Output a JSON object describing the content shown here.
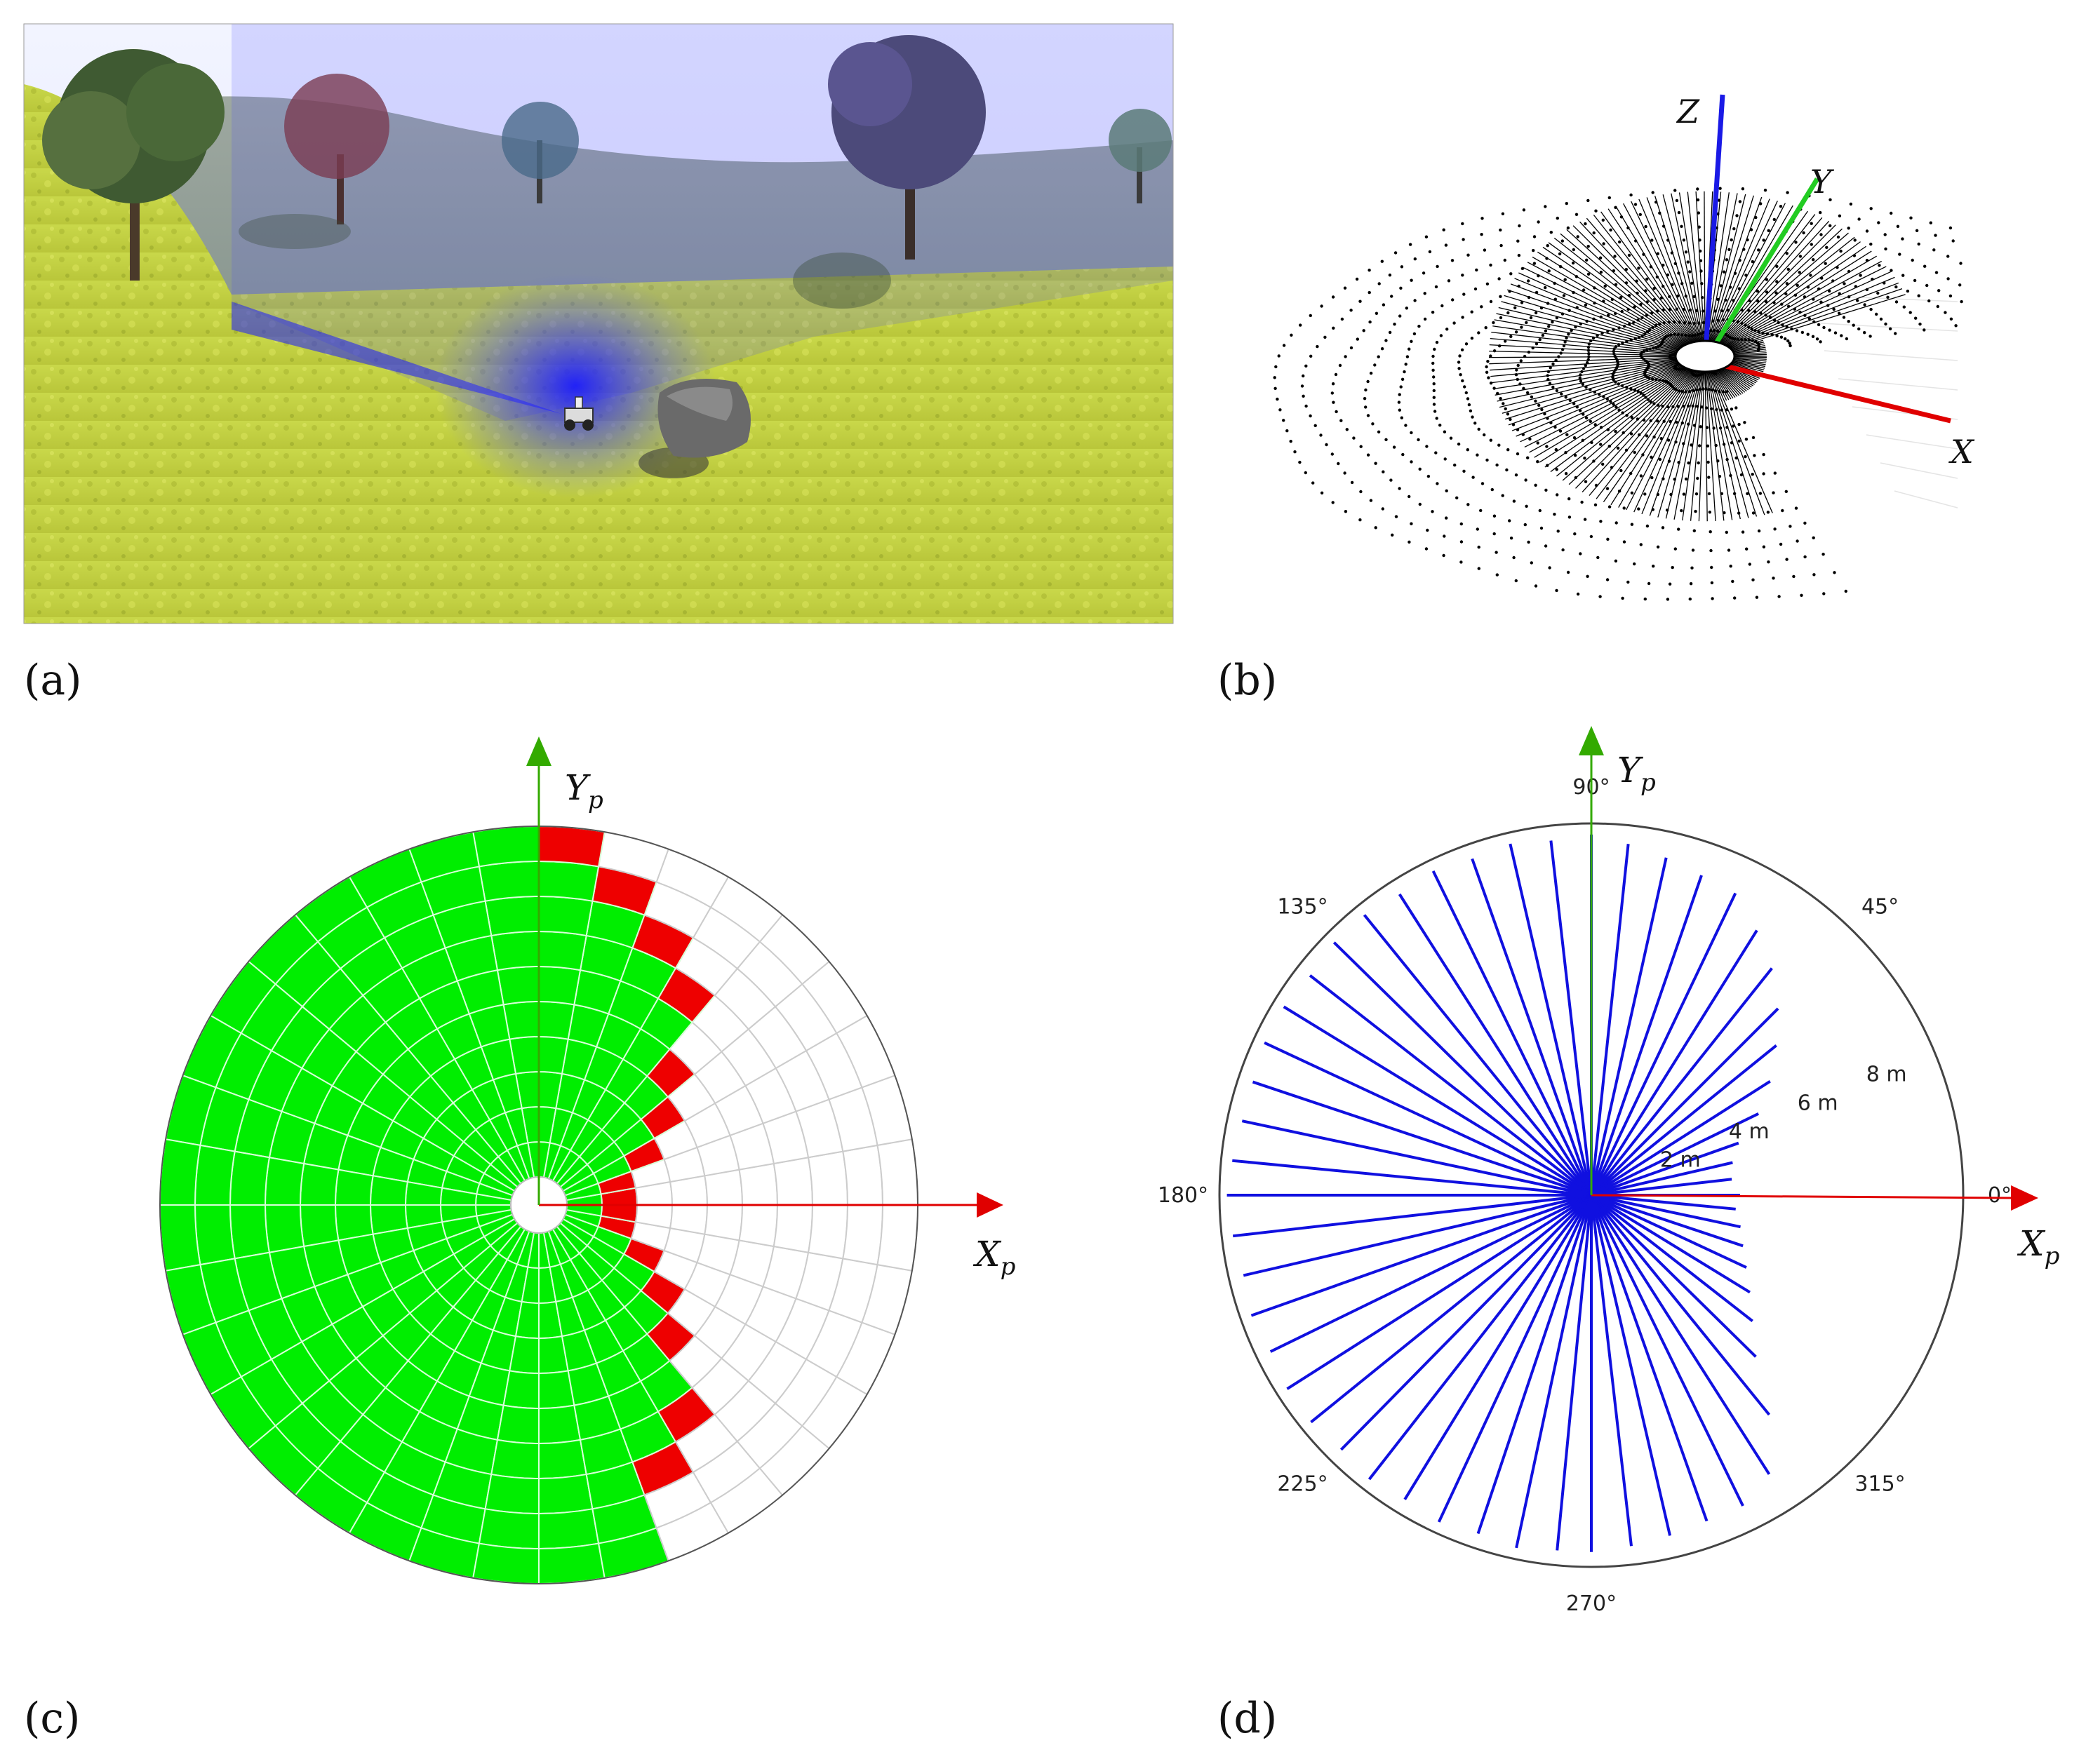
{
  "panels": {
    "a": {
      "label": "(a)"
    },
    "b": {
      "label": "(b)",
      "axes": {
        "x": "X",
        "y": "Y",
        "z": "Z"
      },
      "colors": {
        "x": "#e00000",
        "y": "#22cc22",
        "z": "#1a1ae6"
      }
    },
    "c": {
      "label": "(c)",
      "x_axis_label": "X",
      "x_axis_sub": "p",
      "y_axis_label": "Y",
      "y_axis_sub": "p",
      "colors": {
        "free": "#00ee00",
        "occupied": "#ee0000",
        "unknown": "#ffffff",
        "grid": "#dddddd"
      }
    },
    "d": {
      "label": "(d)",
      "x_axis_label": "X",
      "x_axis_sub": "p",
      "y_axis_label": "Y",
      "y_axis_sub": "p",
      "angle_labels": [
        "0°",
        "45°",
        "90°",
        "135°",
        "180°",
        "225°",
        "270°",
        "315°"
      ],
      "range_labels": [
        "2 m",
        "4 m",
        "6 m",
        "8 m"
      ],
      "colors": {
        "ray": "#1010e0",
        "circle": "#444444",
        "x_axis": "#e00000",
        "y_axis": "#33aa00"
      }
    }
  },
  "chart_data": {
    "type": "polar_rays",
    "description_units": "angle in degrees, range in meters",
    "rays": [
      {
        "angle": 0,
        "range": 4.0
      },
      {
        "angle": 6.5,
        "range": 3.8
      },
      {
        "angle": 13,
        "range": 3.9
      },
      {
        "angle": 19.5,
        "range": 4.2
      },
      {
        "angle": 26,
        "range": 5.0
      },
      {
        "angle": 32.5,
        "range": 5.7
      },
      {
        "angle": 39,
        "range": 6.4
      },
      {
        "angle": 45,
        "range": 7.1
      },
      {
        "angle": 51.5,
        "range": 7.8
      },
      {
        "angle": 58,
        "range": 8.4
      },
      {
        "angle": 64.5,
        "range": 9.0
      },
      {
        "angle": 71,
        "range": 9.1
      },
      {
        "angle": 77.5,
        "range": 9.3
      },
      {
        "angle": 84,
        "range": 9.5
      },
      {
        "angle": 90,
        "range": 9.7
      },
      {
        "angle": 96.5,
        "range": 9.6
      },
      {
        "angle": 103,
        "range": 9.7
      },
      {
        "angle": 109.5,
        "range": 9.6
      },
      {
        "angle": 116,
        "range": 9.7
      },
      {
        "angle": 122.5,
        "range": 9.6
      },
      {
        "angle": 129,
        "range": 9.7
      },
      {
        "angle": 135.5,
        "range": 9.7
      },
      {
        "angle": 142,
        "range": 9.6
      },
      {
        "angle": 148.5,
        "range": 9.7
      },
      {
        "angle": 155,
        "range": 9.7
      },
      {
        "angle": 161.5,
        "range": 9.6
      },
      {
        "angle": 168,
        "range": 9.6
      },
      {
        "angle": 174.5,
        "range": 9.7
      },
      {
        "angle": 180,
        "range": 9.8
      },
      {
        "angle": 186.5,
        "range": 9.7
      },
      {
        "angle": 193,
        "range": 9.6
      },
      {
        "angle": 199.5,
        "range": 9.7
      },
      {
        "angle": 206,
        "range": 9.6
      },
      {
        "angle": 212.5,
        "range": 9.7
      },
      {
        "angle": 219,
        "range": 9.7
      },
      {
        "angle": 225.5,
        "range": 9.6
      },
      {
        "angle": 232,
        "range": 9.7
      },
      {
        "angle": 238.5,
        "range": 9.6
      },
      {
        "angle": 245,
        "range": 9.7
      },
      {
        "angle": 251.5,
        "range": 9.6
      },
      {
        "angle": 258,
        "range": 9.7
      },
      {
        "angle": 264.5,
        "range": 9.6
      },
      {
        "angle": 270,
        "range": 9.6
      },
      {
        "angle": 276.5,
        "range": 9.5
      },
      {
        "angle": 283,
        "range": 9.4
      },
      {
        "angle": 289.5,
        "range": 9.3
      },
      {
        "angle": 296,
        "range": 9.3
      },
      {
        "angle": 302.5,
        "range": 8.9
      },
      {
        "angle": 309,
        "range": 7.6
      },
      {
        "angle": 315.5,
        "range": 6.2
      },
      {
        "angle": 322,
        "range": 5.5
      },
      {
        "angle": 328.5,
        "range": 5.0
      },
      {
        "angle": 335,
        "range": 4.6
      },
      {
        "angle": 341.5,
        "range": 4.3
      },
      {
        "angle": 348,
        "range": 4.1
      },
      {
        "angle": 354.5,
        "range": 3.9
      }
    ],
    "max_range": 10
  }
}
